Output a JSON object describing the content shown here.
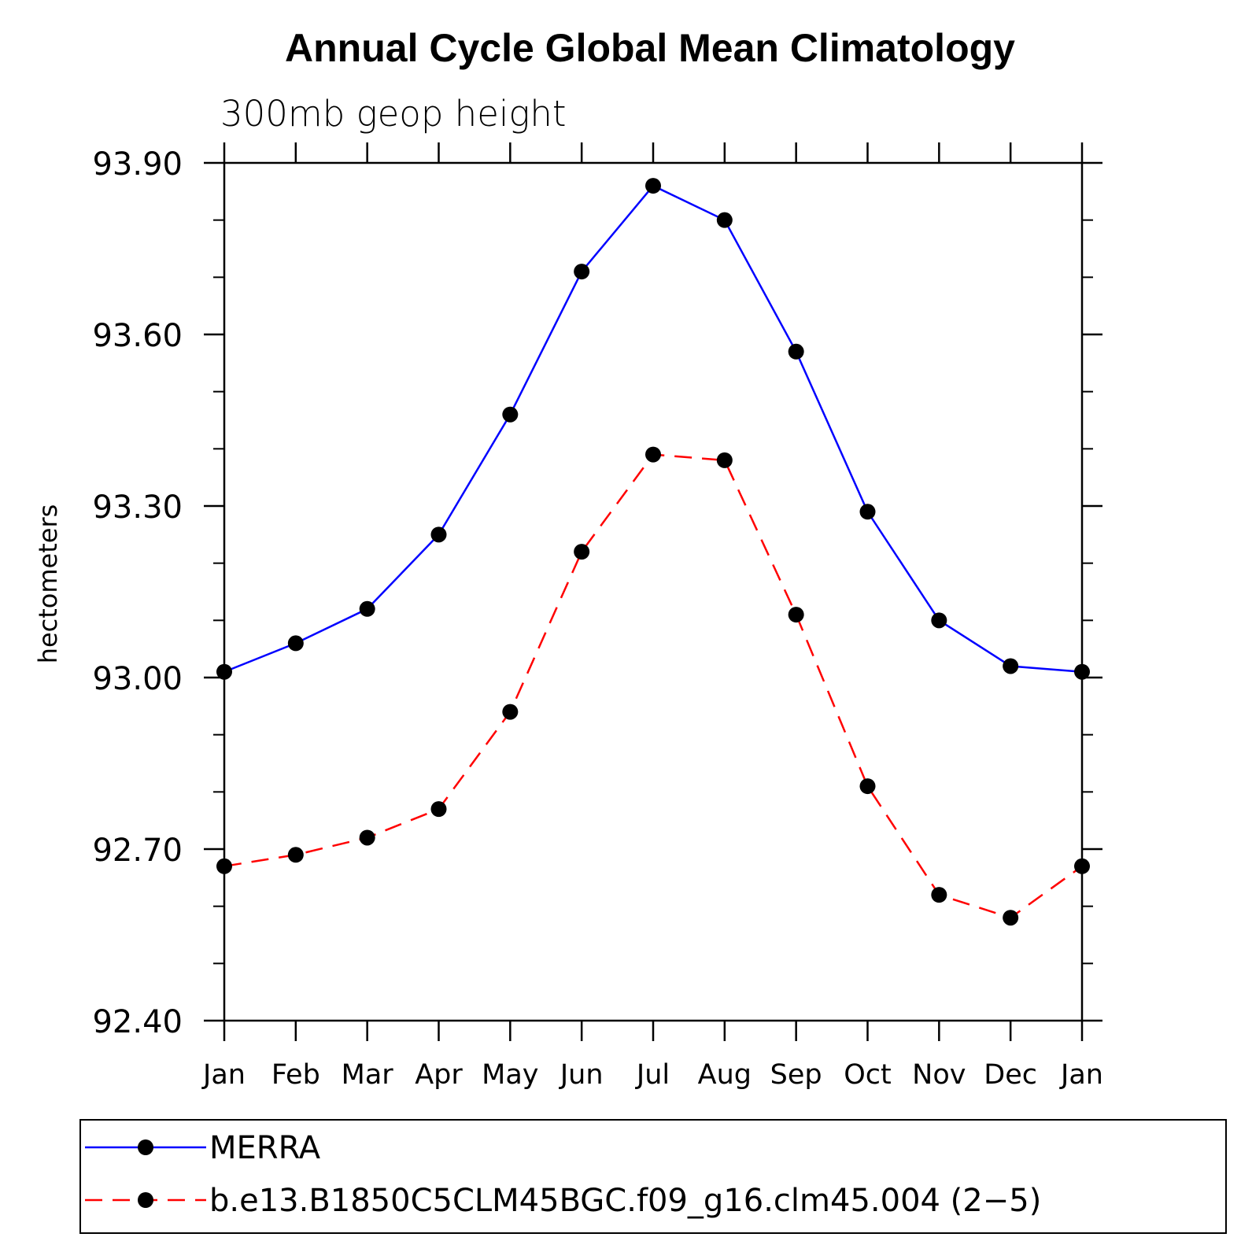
{
  "chart_data": {
    "type": "line",
    "title": "Annual Cycle Global Mean Climatology",
    "subtitle": "300mb geop height",
    "xlabel": "",
    "ylabel": "hectometers",
    "categories": [
      "Jan",
      "Feb",
      "Mar",
      "Apr",
      "May",
      "Jun",
      "Jul",
      "Aug",
      "Sep",
      "Oct",
      "Nov",
      "Dec",
      "Jan"
    ],
    "ylim": [
      92.4,
      93.9
    ],
    "yticks": [
      "92.40",
      "92.70",
      "93.00",
      "93.30",
      "93.60",
      "93.90"
    ],
    "minor_yticks": [
      92.5,
      92.6,
      92.8,
      92.9,
      93.1,
      93.2,
      93.4,
      93.5,
      93.7,
      93.8
    ],
    "grid": false,
    "legend_position": "bottom",
    "series": [
      {
        "name": "MERRA",
        "color": "#0000ff",
        "dash": "solid",
        "marker": "filled-circle",
        "values": [
          93.01,
          93.06,
          93.12,
          93.25,
          93.46,
          93.71,
          93.86,
          93.8,
          93.57,
          93.29,
          93.1,
          93.02,
          93.01
        ]
      },
      {
        "name": "b.e13.B1850C5CLM45BGC.f09_g16.clm45.004 (2−5)",
        "color": "#ff0000",
        "dash": "dashed",
        "marker": "filled-circle",
        "values": [
          92.67,
          92.69,
          92.72,
          92.77,
          92.94,
          93.22,
          93.39,
          93.38,
          93.11,
          92.81,
          92.62,
          92.58,
          92.67
        ]
      }
    ]
  }
}
